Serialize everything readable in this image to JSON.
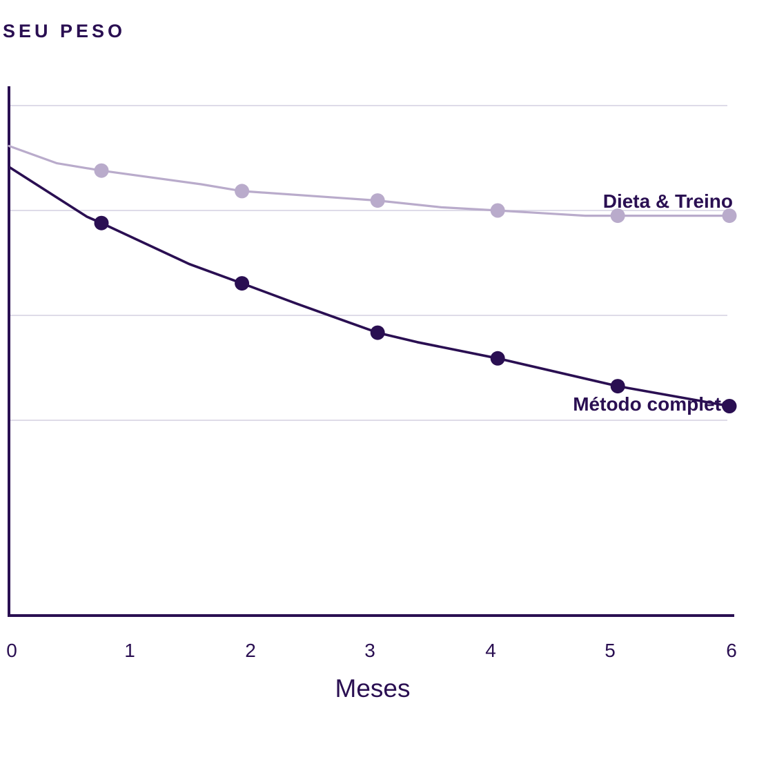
{
  "chart_data": {
    "type": "line",
    "title": "SEU PESO",
    "xlabel": "Meses",
    "ylabel": "",
    "x_ticks": [
      "0",
      "1",
      "2",
      "3",
      "4",
      "5",
      "6"
    ],
    "xlim": [
      0,
      6
    ],
    "ylim": [
      0,
      100
    ],
    "grid": true,
    "gridlines_y": [
      40,
      60,
      80,
      100
    ],
    "series": [
      {
        "name": "Dieta & Treino",
        "color": "#b9abcb",
        "line": [
          {
            "x": 0,
            "y": 92.3
          },
          {
            "x": 0.4,
            "y": 89.0
          },
          {
            "x": 0.77,
            "y": 87.6
          },
          {
            "x": 1.6,
            "y": 85.0
          },
          {
            "x": 1.94,
            "y": 83.7
          },
          {
            "x": 3.07,
            "y": 81.9
          },
          {
            "x": 3.6,
            "y": 80.6
          },
          {
            "x": 4.07,
            "y": 80.0
          },
          {
            "x": 4.8,
            "y": 79.0
          },
          {
            "x": 5.07,
            "y": 79.0
          },
          {
            "x": 6,
            "y": 79.0
          }
        ],
        "markers": [
          {
            "x": 0.77,
            "y": 87.6
          },
          {
            "x": 1.94,
            "y": 83.7
          },
          {
            "x": 3.07,
            "y": 81.9
          },
          {
            "x": 4.07,
            "y": 80.0
          },
          {
            "x": 5.07,
            "y": 79.0
          },
          {
            "x": 6,
            "y": 79.0
          }
        ]
      },
      {
        "name": "Método completo",
        "color": "#2a0f52",
        "line": [
          {
            "x": 0,
            "y": 88.3
          },
          {
            "x": 0.65,
            "y": 78.8
          },
          {
            "x": 0.77,
            "y": 77.6
          },
          {
            "x": 1.5,
            "y": 69.8
          },
          {
            "x": 1.94,
            "y": 66.1
          },
          {
            "x": 2.4,
            "y": 62.2
          },
          {
            "x": 3.07,
            "y": 56.7
          },
          {
            "x": 3.4,
            "y": 54.9
          },
          {
            "x": 4.07,
            "y": 51.8
          },
          {
            "x": 5.07,
            "y": 46.5
          },
          {
            "x": 6,
            "y": 42.7
          }
        ],
        "markers": [
          {
            "x": 0.77,
            "y": 77.6
          },
          {
            "x": 1.94,
            "y": 66.1
          },
          {
            "x": 3.07,
            "y": 56.7
          },
          {
            "x": 4.07,
            "y": 51.8
          },
          {
            "x": 5.07,
            "y": 46.5
          },
          {
            "x": 6,
            "y": 42.7
          }
        ]
      }
    ],
    "colors": {
      "text": "#2a0f52",
      "axis": "#2a0f52",
      "grid": "#d3cfe0",
      "light_series": "#b9abcb",
      "dark_series": "#2a0f52"
    }
  }
}
